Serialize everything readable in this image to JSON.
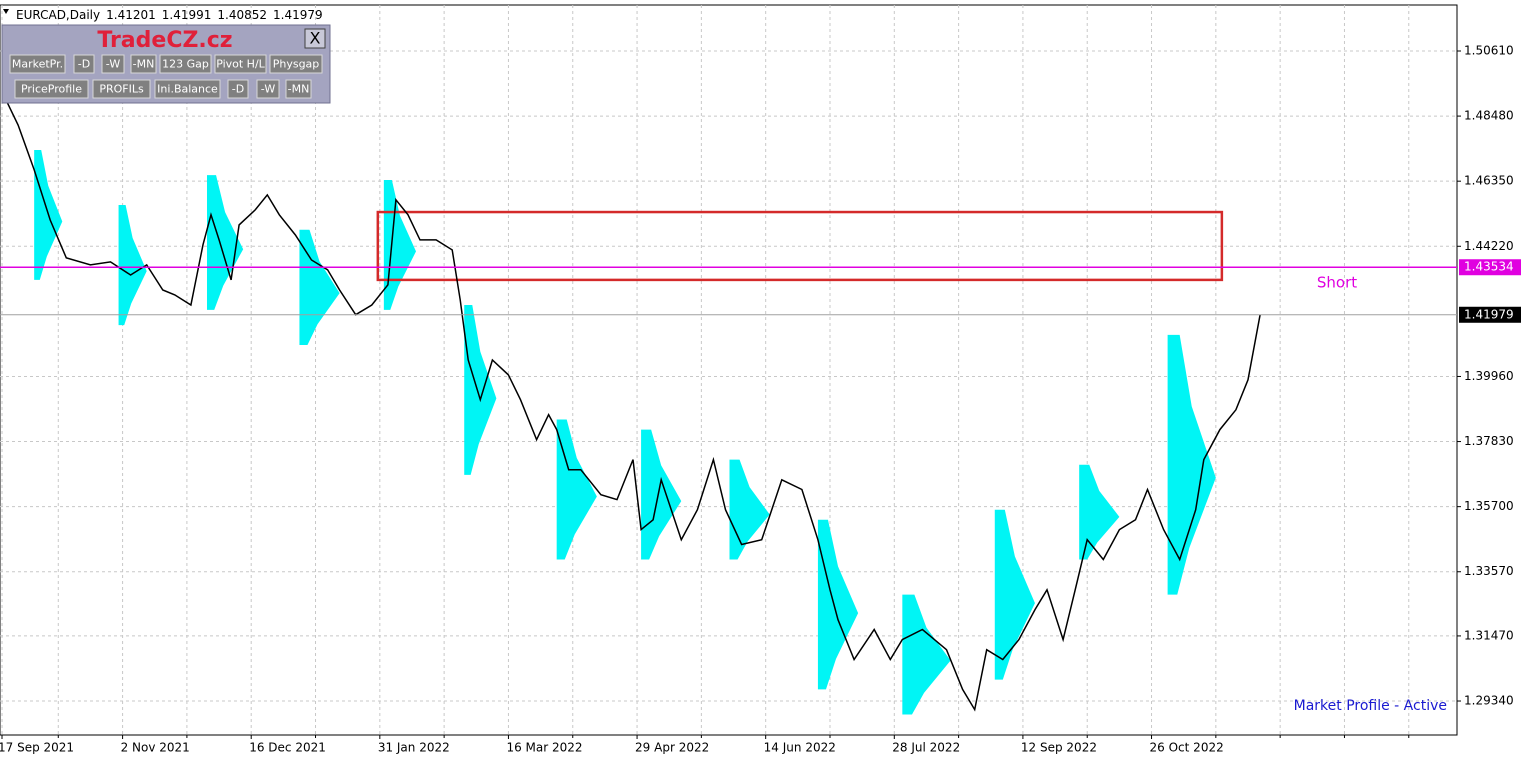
{
  "header": {
    "symbol": "EURCAD,Daily",
    "ohlc": [
      1.41201,
      1.41991,
      1.40852,
      1.41979
    ]
  },
  "panel": {
    "title": "TradeCZ.cz",
    "close": "X",
    "row1": [
      "MarketPr.",
      "-D",
      "-W",
      "-MN",
      "123 Gap",
      "Pivot H/L",
      "Physgap"
    ],
    "row2": [
      "PriceProfile",
      "PROFILs",
      "Ini.Balance",
      "-D",
      "-W",
      "-MN"
    ]
  },
  "status": "Market Profile - Active",
  "chart_data": {
    "type": "line",
    "color": "#000000",
    "x": [
      1,
      4,
      8,
      12,
      16,
      22,
      27,
      32,
      36,
      40,
      43,
      47,
      50,
      52,
      54,
      57,
      59,
      63,
      66,
      69,
      73,
      77,
      81,
      84,
      88,
      92,
      96,
      98,
      101,
      104,
      108,
      112,
      114,
      116,
      119,
      122,
      126,
      129,
      133,
      136,
      138,
      141,
      144,
      149,
      153,
      157,
      159,
      162,
      164,
      169,
      173,
      177,
      180,
      184,
      189,
      194,
      199,
      203,
      206,
      208,
      212,
      217,
      221,
      224,
      229,
      235,
      239,
      242,
      245,
      249,
      253,
      257,
      260,
      264,
      267,
      270,
      274,
      278,
      282,
      285,
      289,
      293,
      297,
      299,
      303,
      307,
      310,
      313
    ],
    "values": [
      1.4901,
      1.4819,
      1.4672,
      1.4508,
      1.4384,
      1.4361,
      1.4371,
      1.4328,
      1.4361,
      1.4279,
      1.4263,
      1.423,
      1.4427,
      1.4525,
      1.4443,
      1.4312,
      1.4492,
      1.4541,
      1.459,
      1.4525,
      1.4459,
      1.4377,
      1.4345,
      1.4279,
      1.4198,
      1.423,
      1.4296,
      1.4574,
      1.4525,
      1.4443,
      1.4443,
      1.441,
      1.4247,
      1.405,
      1.392,
      1.405,
      1.4001,
      1.392,
      1.3789,
      1.3871,
      1.3822,
      1.3691,
      1.3691,
      1.3609,
      1.3593,
      1.3724,
      1.3495,
      1.3527,
      1.3658,
      1.3462,
      1.356,
      1.3724,
      1.356,
      1.3446,
      1.3462,
      1.3658,
      1.3626,
      1.3462,
      1.3298,
      1.32,
      1.307,
      1.3168,
      1.307,
      1.3135,
      1.3168,
      1.3102,
      1.2972,
      1.2906,
      1.3102,
      1.307,
      1.3135,
      1.3233,
      1.3298,
      1.3135,
      1.3298,
      1.3462,
      1.3397,
      1.3495,
      1.3527,
      1.3626,
      1.3495,
      1.3397,
      1.356,
      1.3724,
      1.3822,
      1.3887,
      1.3985,
      1.41979
    ],
    "xlim": [
      -0.5,
      362
    ],
    "xticks": [
      {
        "value": 0,
        "label": "17 Sep 2021"
      },
      {
        "value": 30,
        "label": "2 Nov 2021"
      },
      {
        "value": 62,
        "label": "16 Dec 2021"
      },
      {
        "value": 94,
        "label": "31 Jan 2022"
      },
      {
        "value": 126,
        "label": "16 Mar 2022"
      },
      {
        "value": 158,
        "label": "29 Apr 2022"
      },
      {
        "value": 190,
        "label": "14 Jun 2022"
      },
      {
        "value": 222,
        "label": "28 Jul 2022"
      },
      {
        "value": 254,
        "label": "12 Sep 2022"
      },
      {
        "value": 286,
        "label": "26 Oct 2022"
      }
    ],
    "xgrid": [
      14,
      46,
      78,
      110,
      142,
      174,
      206,
      238,
      270,
      302,
      318,
      334,
      350
    ],
    "ylim": [
      1.28228,
      1.52115
    ],
    "yticks": [
      {
        "value": 1.5061,
        "label": "1.50610"
      },
      {
        "value": 1.4848,
        "label": "1.48480"
      },
      {
        "value": 1.4635,
        "label": "1.46350"
      },
      {
        "value": 1.4422,
        "label": "1.44220"
      },
      {
        "value": 1.3996,
        "label": "1.39960"
      },
      {
        "value": 1.3783,
        "label": "1.37830"
      },
      {
        "value": 1.357,
        "label": "1.35700"
      },
      {
        "value": 1.3357,
        "label": "1.33570"
      },
      {
        "value": 1.3147,
        "label": "1.31470"
      },
      {
        "value": 1.2934,
        "label": "1.29340"
      }
    ],
    "grid": true,
    "profile_color": "#00f5f5",
    "profiles": [
      {
        "start": 8,
        "high": 1.4737,
        "low": 1.4312,
        "width": 7
      },
      {
        "start": 29,
        "high": 1.4557,
        "low": 1.4164,
        "width": 7
      },
      {
        "start": 51,
        "high": 1.4655,
        "low": 1.4214,
        "width": 9
      },
      {
        "start": 74,
        "high": 1.4476,
        "low": 1.4099,
        "width": 10
      },
      {
        "start": 95,
        "high": 1.4639,
        "low": 1.4214,
        "width": 8
      },
      {
        "start": 115,
        "high": 1.423,
        "low": 1.3674,
        "width": 8
      },
      {
        "start": 138,
        "high": 1.3855,
        "low": 1.3397,
        "width": 10
      },
      {
        "start": 159,
        "high": 1.3822,
        "low": 1.3397,
        "width": 10
      },
      {
        "start": 181,
        "high": 1.3724,
        "low": 1.3397,
        "width": 10
      },
      {
        "start": 203,
        "high": 1.3527,
        "low": 1.2972,
        "width": 10
      },
      {
        "start": 224,
        "high": 1.3282,
        "low": 1.289,
        "width": 12
      },
      {
        "start": 247,
        "high": 1.356,
        "low": 1.3004,
        "width": 10
      },
      {
        "start": 268,
        "high": 1.3707,
        "low": 1.3397,
        "width": 10
      },
      {
        "start": 290,
        "high": 1.4132,
        "low": 1.3282,
        "width": 12
      }
    ],
    "zone": {
      "start": 93.5,
      "end": 303.5,
      "high": 1.4534,
      "low": 1.4312,
      "color": "#d42a2a"
    },
    "level": {
      "value": 1.43534,
      "label": "Short",
      "color": "#e000e0"
    },
    "current_price": 1.41979
  }
}
